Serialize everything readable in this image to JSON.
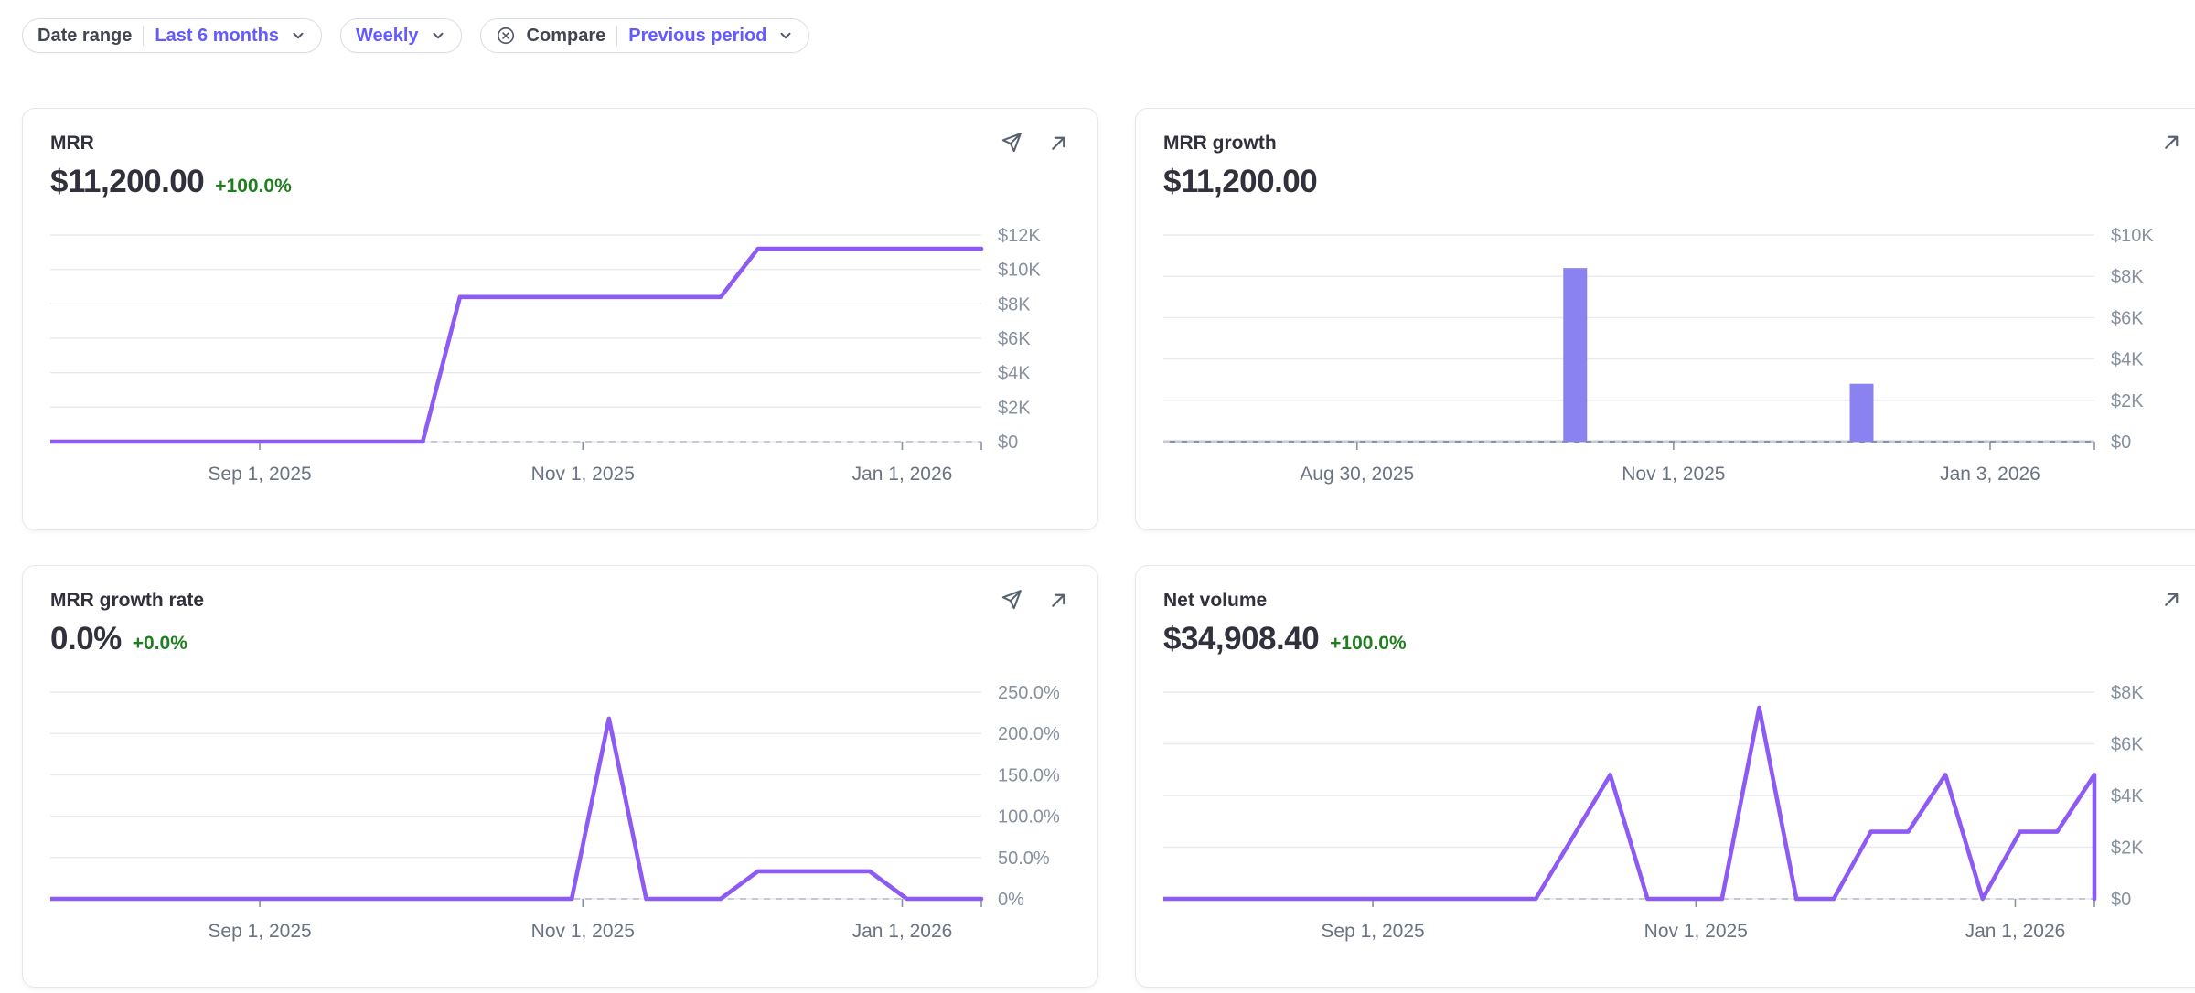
{
  "filter_bar": {
    "date_range_label": "Date range",
    "date_range_value": "Last 6 months",
    "interval_value": "Weekly",
    "compare_label": "Compare",
    "compare_value": "Previous period"
  },
  "colors": {
    "line": "#8d5af4",
    "bar": "#8b82f1",
    "grid": "#e7eaef",
    "baseline": "#8792a2",
    "dash_zero": "#c3cad4",
    "axis_y_text": "#87909f",
    "axis_x_text": "#6a7383",
    "icon": "#5a6270",
    "accent_purple": "#635bff",
    "delta_green": "#1f7f1f",
    "title_text": "#30313d"
  },
  "chart_data": [
    {
      "type": "line",
      "title": "MRR",
      "value": "$11,200.00",
      "delta": "+100.0%",
      "has_send_icon": true,
      "has_expand_icon": true,
      "xlabel": "weekly buckets, last 6 months",
      "ylim": [
        0,
        12000
      ],
      "y_ticks": [
        {
          "label": "$12K",
          "v": 12000
        },
        {
          "label": "$10K",
          "v": 10000
        },
        {
          "label": "$8K",
          "v": 8000
        },
        {
          "label": "$6K",
          "v": 6000
        },
        {
          "label": "$4K",
          "v": 4000
        },
        {
          "label": "$2K",
          "v": 2000
        },
        {
          "label": "$0",
          "v": 0
        }
      ],
      "x_ticks": [
        {
          "label": "Sep 1, 2025",
          "f": 0.225
        },
        {
          "label": "Nov 1, 2025",
          "f": 0.572
        },
        {
          "label": "Jan 1, 2026",
          "f": 0.915
        }
      ],
      "values": [
        0,
        0,
        0,
        0,
        0,
        0,
        0,
        0,
        0,
        0,
        0,
        8400,
        8400,
        8400,
        8400,
        8400,
        8400,
        8400,
        8400,
        11200,
        11200,
        11200,
        11200,
        11200,
        11200,
        11200
      ],
      "comparison_values_all_zero": true,
      "end_drop": false
    },
    {
      "type": "bar",
      "title": "MRR growth",
      "value": "$11,200.00",
      "delta": "",
      "has_send_icon": false,
      "has_expand_icon": true,
      "xlabel": "weekly buckets, last 6 months",
      "ylim": [
        0,
        10000
      ],
      "y_ticks": [
        {
          "label": "$10K",
          "v": 10000
        },
        {
          "label": "$8K",
          "v": 8000
        },
        {
          "label": "$6K",
          "v": 6000
        },
        {
          "label": "$4K",
          "v": 4000
        },
        {
          "label": "$2K",
          "v": 2000
        },
        {
          "label": "$0",
          "v": 0
        }
      ],
      "x_ticks": [
        {
          "label": "Aug 30, 2025",
          "f": 0.208
        },
        {
          "label": "Nov 1, 2025",
          "f": 0.548
        },
        {
          "label": "Jan 3, 2026",
          "f": 0.888
        }
      ],
      "values": [
        0,
        0,
        0,
        0,
        0,
        0,
        0,
        0,
        0,
        0,
        0,
        8400,
        0,
        0,
        0,
        0,
        0,
        0,
        0,
        2800,
        0,
        0,
        0,
        0,
        0,
        0
      ],
      "comparison_values_all_zero": true,
      "end_drop": false
    },
    {
      "type": "line",
      "title": "MRR growth rate",
      "value": "0.0%",
      "delta": "+0.0%",
      "has_send_icon": true,
      "has_expand_icon": true,
      "xlabel": "weekly buckets, last 6 months",
      "ylim": [
        0,
        250
      ],
      "y_ticks": [
        {
          "label": "250.0%",
          "v": 250
        },
        {
          "label": "200.0%",
          "v": 200
        },
        {
          "label": "150.0%",
          "v": 150
        },
        {
          "label": "100.0%",
          "v": 100
        },
        {
          "label": "50.0%",
          "v": 50
        },
        {
          "label": "0%",
          "v": 0
        }
      ],
      "x_ticks": [
        {
          "label": "Sep 1, 2025",
          "f": 0.225
        },
        {
          "label": "Nov 1, 2025",
          "f": 0.572
        },
        {
          "label": "Jan 1, 2026",
          "f": 0.915
        }
      ],
      "values": [
        0,
        0,
        0,
        0,
        0,
        0,
        0,
        0,
        0,
        0,
        0,
        0,
        0,
        0,
        0,
        218,
        0,
        0,
        0,
        33.3,
        33.3,
        33.3,
        33.3,
        0,
        0,
        0
      ],
      "comparison_values_all_zero": true,
      "end_drop": false
    },
    {
      "type": "line",
      "title": "Net volume",
      "value": "$34,908.40",
      "delta": "+100.0%",
      "has_send_icon": false,
      "has_expand_icon": true,
      "xlabel": "weekly buckets, last 6 months",
      "ylim": [
        0,
        8000
      ],
      "y_ticks": [
        {
          "label": "$8K",
          "v": 8000
        },
        {
          "label": "$6K",
          "v": 6000
        },
        {
          "label": "$4K",
          "v": 4000
        },
        {
          "label": "$2K",
          "v": 2000
        },
        {
          "label": "$0",
          "v": 0
        }
      ],
      "x_ticks": [
        {
          "label": "Sep 1, 2025",
          "f": 0.225
        },
        {
          "label": "Nov 1, 2025",
          "f": 0.572
        },
        {
          "label": "Jan 1, 2026",
          "f": 0.915
        }
      ],
      "values": [
        0,
        0,
        0,
        0,
        0,
        0,
        0,
        0,
        0,
        0,
        0,
        2400,
        4800,
        0,
        0,
        0,
        7400,
        0,
        0,
        2600,
        2600,
        4800,
        0,
        2600,
        2600,
        4800
      ],
      "comparison_values_all_zero": true,
      "end_drop": true
    }
  ]
}
